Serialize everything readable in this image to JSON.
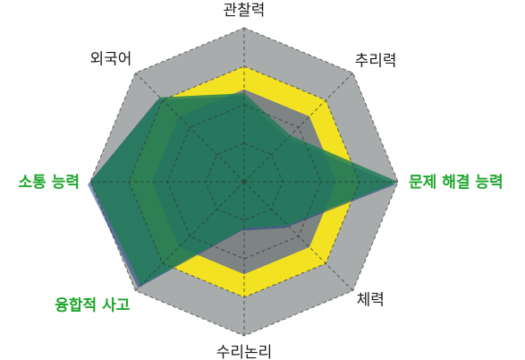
{
  "chart_data": {
    "type": "radar",
    "axes": [
      "관찰력",
      "추리력",
      "문제 해결 능력",
      "체력",
      "수리논리",
      "융합적 사고",
      "소통 능력",
      "외국어"
    ],
    "highlighted_axes": [
      "문제 해결 능력",
      "융합적 사고",
      "소통 능력"
    ],
    "levels": 4,
    "range": [
      0,
      4
    ],
    "grid_style": "dashed",
    "series": [
      {
        "values": [
          3,
          3,
          3,
          3,
          3,
          3,
          3,
          3
        ]
      },
      {
        "values": [
          2.3,
          1.7,
          4,
          1.6,
          1.2,
          3.8,
          4,
          3.1
        ]
      }
    ]
  },
  "colors": {
    "octagon_fill": "#a8acac",
    "inner_octagon_fill": "#7e8384",
    "uniform_series": "#f2e222",
    "profile_series": "#1f7d55",
    "profile_shadow": "#1b3f84",
    "grid_line": "#333333",
    "label_default": "#1a1a1a",
    "label_highlight": "#1ea62d"
  }
}
